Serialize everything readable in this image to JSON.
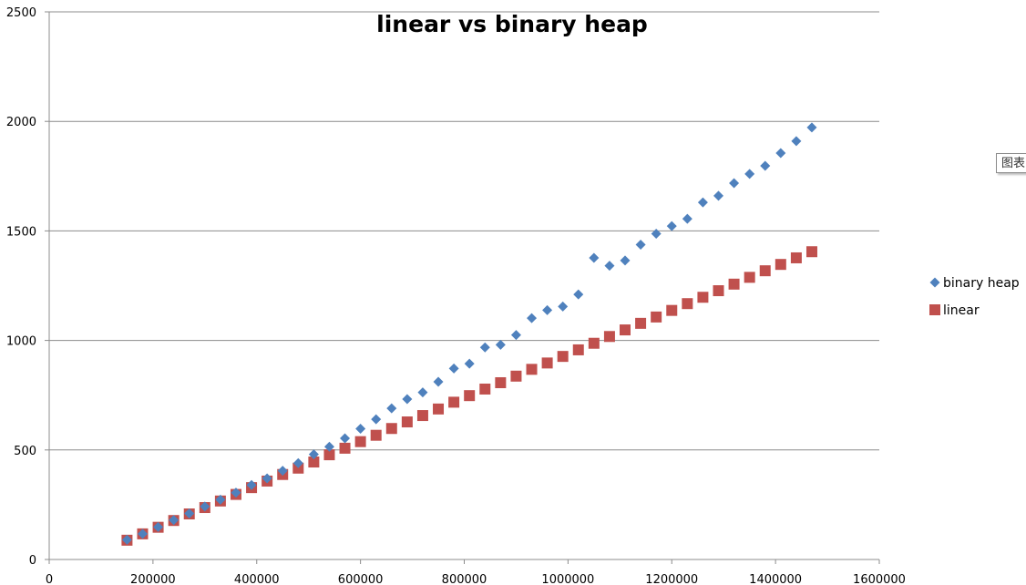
{
  "tooltip": {
    "text": "图表"
  },
  "chart_data": {
    "type": "scatter",
    "title": "linear vs binary heap",
    "xlabel": "",
    "ylabel": "",
    "xlim": [
      0,
      1600000
    ],
    "ylim": [
      0,
      2500
    ],
    "xticks": [
      0,
      200000,
      400000,
      600000,
      800000,
      1000000,
      1200000,
      1400000,
      1600000
    ],
    "yticks": [
      0,
      500,
      1000,
      1500,
      2000,
      2500
    ],
    "grid": "horizontal major gridlines",
    "legend_position": "right",
    "series": [
      {
        "name": "binary heap",
        "color": "#4F81BD",
        "marker": "diamond",
        "points": [
          [
            150000,
            90
          ],
          [
            180000,
            117
          ],
          [
            210000,
            148
          ],
          [
            240000,
            180
          ],
          [
            270000,
            210
          ],
          [
            300000,
            242
          ],
          [
            330000,
            273
          ],
          [
            360000,
            305
          ],
          [
            390000,
            340
          ],
          [
            420000,
            370
          ],
          [
            450000,
            405
          ],
          [
            480000,
            440
          ],
          [
            510000,
            480
          ],
          [
            540000,
            515
          ],
          [
            570000,
            553
          ],
          [
            600000,
            597
          ],
          [
            630000,
            640
          ],
          [
            660000,
            690
          ],
          [
            690000,
            732
          ],
          [
            720000,
            763
          ],
          [
            750000,
            811
          ],
          [
            780000,
            872
          ],
          [
            810000,
            894
          ],
          [
            840000,
            968
          ],
          [
            870000,
            980
          ],
          [
            900000,
            1025
          ],
          [
            930000,
            1102
          ],
          [
            960000,
            1138
          ],
          [
            990000,
            1155
          ],
          [
            1020000,
            1210
          ],
          [
            1050000,
            1377
          ],
          [
            1080000,
            1341
          ],
          [
            1110000,
            1365
          ],
          [
            1140000,
            1437
          ],
          [
            1170000,
            1487
          ],
          [
            1200000,
            1522
          ],
          [
            1230000,
            1555
          ],
          [
            1260000,
            1630
          ],
          [
            1290000,
            1660
          ],
          [
            1320000,
            1718
          ],
          [
            1350000,
            1760
          ],
          [
            1380000,
            1797
          ],
          [
            1410000,
            1855
          ],
          [
            1440000,
            1910
          ],
          [
            1470000,
            1972
          ]
        ]
      },
      {
        "name": "linear",
        "color": "#C0504D",
        "marker": "square",
        "points": [
          [
            150000,
            88
          ],
          [
            180000,
            117
          ],
          [
            210000,
            147
          ],
          [
            240000,
            178
          ],
          [
            270000,
            208
          ],
          [
            300000,
            237
          ],
          [
            330000,
            267
          ],
          [
            360000,
            297
          ],
          [
            390000,
            328
          ],
          [
            420000,
            358
          ],
          [
            450000,
            388
          ],
          [
            480000,
            417
          ],
          [
            510000,
            445
          ],
          [
            540000,
            478
          ],
          [
            570000,
            508
          ],
          [
            600000,
            538
          ],
          [
            630000,
            567
          ],
          [
            660000,
            598
          ],
          [
            690000,
            628
          ],
          [
            720000,
            657
          ],
          [
            750000,
            687
          ],
          [
            780000,
            718
          ],
          [
            810000,
            748
          ],
          [
            840000,
            778
          ],
          [
            870000,
            807
          ],
          [
            900000,
            837
          ],
          [
            930000,
            868
          ],
          [
            960000,
            897
          ],
          [
            990000,
            927
          ],
          [
            1020000,
            957
          ],
          [
            1050000,
            987
          ],
          [
            1080000,
            1018
          ],
          [
            1110000,
            1048
          ],
          [
            1140000,
            1078
          ],
          [
            1170000,
            1107
          ],
          [
            1200000,
            1137
          ],
          [
            1230000,
            1168
          ],
          [
            1260000,
            1197
          ],
          [
            1290000,
            1227
          ],
          [
            1320000,
            1257
          ],
          [
            1350000,
            1288
          ],
          [
            1380000,
            1318
          ],
          [
            1410000,
            1347
          ],
          [
            1440000,
            1377
          ],
          [
            1470000,
            1405
          ]
        ]
      }
    ]
  }
}
